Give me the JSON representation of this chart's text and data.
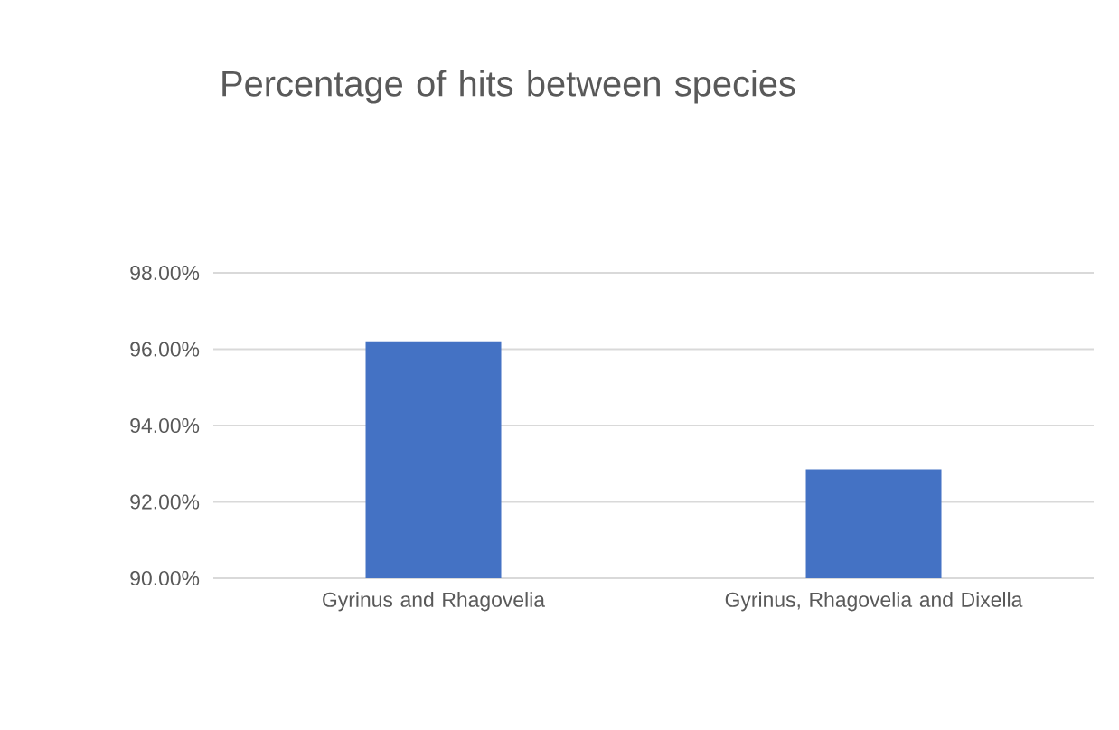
{
  "chart_data": {
    "type": "bar",
    "title": "Percentage of hits between species",
    "categories": [
      "Gyrinus and Rhagovelia",
      "Gyrinus, Rhagovelia and Dixella"
    ],
    "values": [
      96.21,
      92.85
    ],
    "color": "#4472c4",
    "ylim": [
      90,
      98
    ],
    "yticks": [
      {
        "value": 90,
        "label": "90.00%"
      },
      {
        "value": 92,
        "label": "92.00%"
      },
      {
        "value": 94,
        "label": "94.00%"
      },
      {
        "value": 96,
        "label": "96.00%"
      },
      {
        "value": 98,
        "label": "98.00%"
      }
    ],
    "grid": "y"
  }
}
